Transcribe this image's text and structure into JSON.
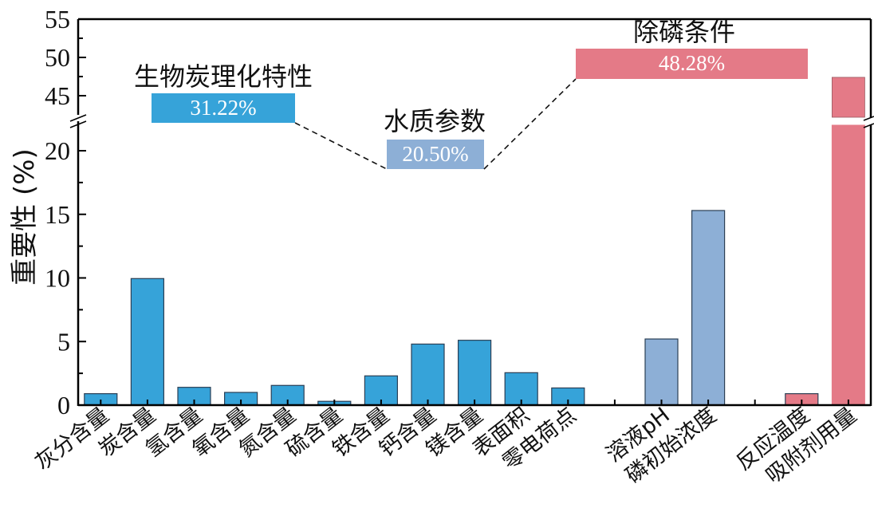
{
  "chart_data": {
    "type": "bar",
    "ylabel": "重要性 (%)",
    "y_break": {
      "lower_range": [
        0,
        22
      ],
      "upper_range": [
        42,
        55
      ]
    },
    "ylim": [
      0,
      55
    ],
    "yticks_lower": [
      "0",
      "5",
      "10",
      "15",
      "20"
    ],
    "yticks_upper": [
      "45",
      "50",
      "55"
    ],
    "categories": [
      "灰分含量",
      "炭含量",
      "氢含量",
      "氧含量",
      "氮含量",
      "硫含量",
      "铁含量",
      "钙含量",
      "镁含量",
      "表面积",
      "零电荷点",
      "",
      "溶液pH",
      "磷初始浓度",
      "",
      "反应温度",
      "吸附剂用量"
    ],
    "values": [
      0.9,
      9.95,
      1.4,
      1.0,
      1.55,
      0.3,
      2.3,
      4.8,
      5.1,
      2.55,
      1.35,
      null,
      5.2,
      15.3,
      null,
      0.9,
      47.4
    ],
    "groups": [
      {
        "name": "生物炭理化特性",
        "share": "31.22%",
        "color": "#36A3D9",
        "indices": [
          0,
          1,
          2,
          3,
          4,
          5,
          6,
          7,
          8,
          9,
          10
        ]
      },
      {
        "name": "水质参数",
        "share": "20.50%",
        "color": "#8DAFD6",
        "indices": [
          12,
          13
        ]
      },
      {
        "name": "除磷条件",
        "share": "48.28%",
        "color": "#E47A87",
        "indices": [
          15,
          16
        ]
      }
    ],
    "grid": false,
    "legend": "none"
  }
}
